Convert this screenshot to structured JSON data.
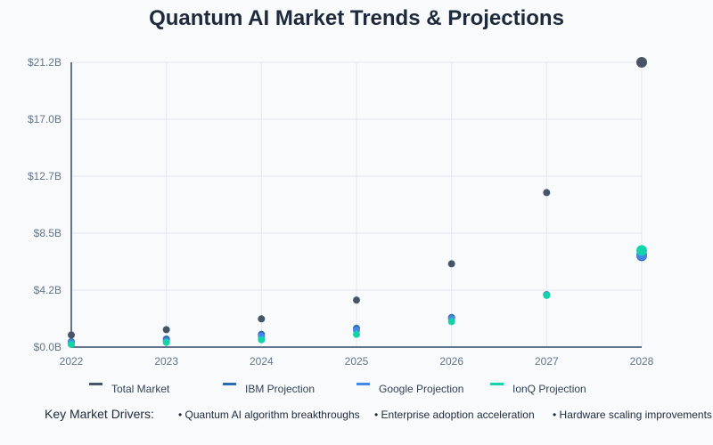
{
  "chart_data": {
    "type": "scatter",
    "title": "Quantum AI Market Trends & Projections",
    "xlabel": "",
    "ylabel": "",
    "categories": [
      "2022",
      "2023",
      "2024",
      "2025",
      "2026",
      "2027",
      "2028"
    ],
    "y_ticks": [
      "$0.0B",
      "$4.2B",
      "$8.5B",
      "$12.7B",
      "$17.0B",
      "$21.2B"
    ],
    "ylim": [
      0,
      21.2
    ],
    "grid": true,
    "legend_position": "bottom",
    "series": [
      {
        "name": "Total Market",
        "color": "#475569",
        "values": [
          0.9,
          1.3,
          2.1,
          3.5,
          6.2,
          11.5,
          21.2
        ]
      },
      {
        "name": "IBM Projection",
        "color": "#2b6cb0",
        "values": [
          0.4,
          0.6,
          0.95,
          1.4,
          2.2,
          3.9,
          6.8
        ]
      },
      {
        "name": "Google Projection",
        "color": "#4a86e8",
        "values": [
          0.32,
          0.45,
          0.8,
          1.25,
          2.1,
          3.9,
          6.9
        ]
      },
      {
        "name": "IonQ Projection",
        "color": "#14d3a8",
        "values": [
          0.2,
          0.35,
          0.55,
          0.95,
          1.9,
          3.85,
          7.2
        ]
      }
    ]
  },
  "legend": [
    {
      "label": "Total Market",
      "color": "#475569"
    },
    {
      "label": "IBM Projection",
      "color": "#2b6cb0"
    },
    {
      "label": "Google Projection",
      "color": "#4a86e8"
    },
    {
      "label": "IonQ Projection",
      "color": "#14d3a8"
    }
  ],
  "drivers": {
    "title": "Key Market Drivers:",
    "items": [
      "• Quantum AI algorithm breakthroughs",
      "• Enterprise adoption acceleration",
      "• Hardware scaling improvements"
    ]
  }
}
